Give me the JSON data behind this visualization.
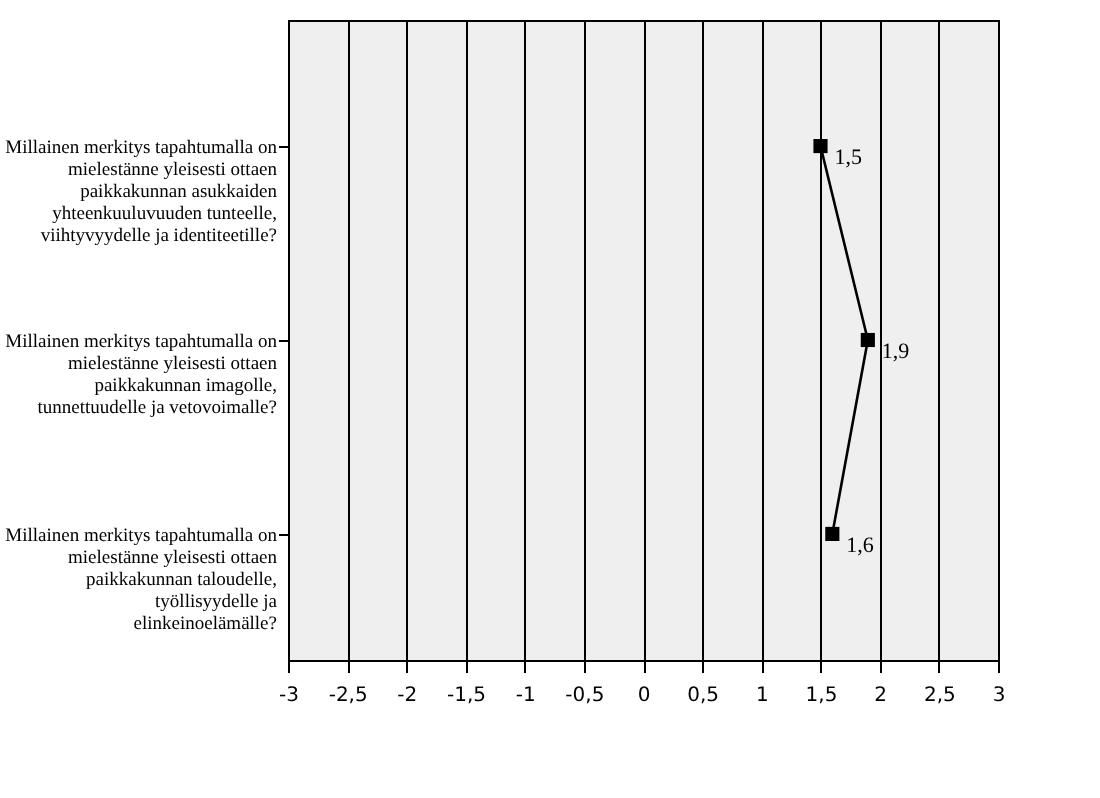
{
  "chart_data": {
    "type": "line",
    "orientation": "horizontal",
    "categories": [
      "Millainen merkitys tapahtumalla on mielestänne yleisesti ottaen paikkakunnan asukkaiden yhteenkuuluvuuden tunteelle, viihtyvyydelle ja identiteetille?",
      "Millainen merkitys tapahtumalla on mielestänne yleisesti ottaen paikkakunnan imagolle, tunnettuudelle ja vetovoimalle?",
      "Millainen merkitys tapahtumalla on mielestänne yleisesti ottaen paikkakunnan taloudelle, työllisyydelle ja elinkeinoelämälle?"
    ],
    "values": [
      1.5,
      1.9,
      1.6
    ],
    "value_labels": [
      "1,5",
      "1,9",
      "1,6"
    ],
    "color": "#000000",
    "marker": "square",
    "xlim": [
      -3,
      3
    ],
    "xticks": [
      {
        "value": -3,
        "label": "-3"
      },
      {
        "value": -2.5,
        "label": "-2,5"
      },
      {
        "value": -2,
        "label": "-2"
      },
      {
        "value": -1.5,
        "label": "-1,5"
      },
      {
        "value": -1,
        "label": "-1"
      },
      {
        "value": -0.5,
        "label": "-0,5"
      },
      {
        "value": 0,
        "label": "0"
      },
      {
        "value": 0.5,
        "label": "0,5"
      },
      {
        "value": 1,
        "label": "1"
      },
      {
        "value": 1.5,
        "label": "1,5"
      },
      {
        "value": 2,
        "label": "2"
      },
      {
        "value": 2.5,
        "label": "2,5"
      },
      {
        "value": 3,
        "label": "3"
      }
    ],
    "grid": "x"
  }
}
